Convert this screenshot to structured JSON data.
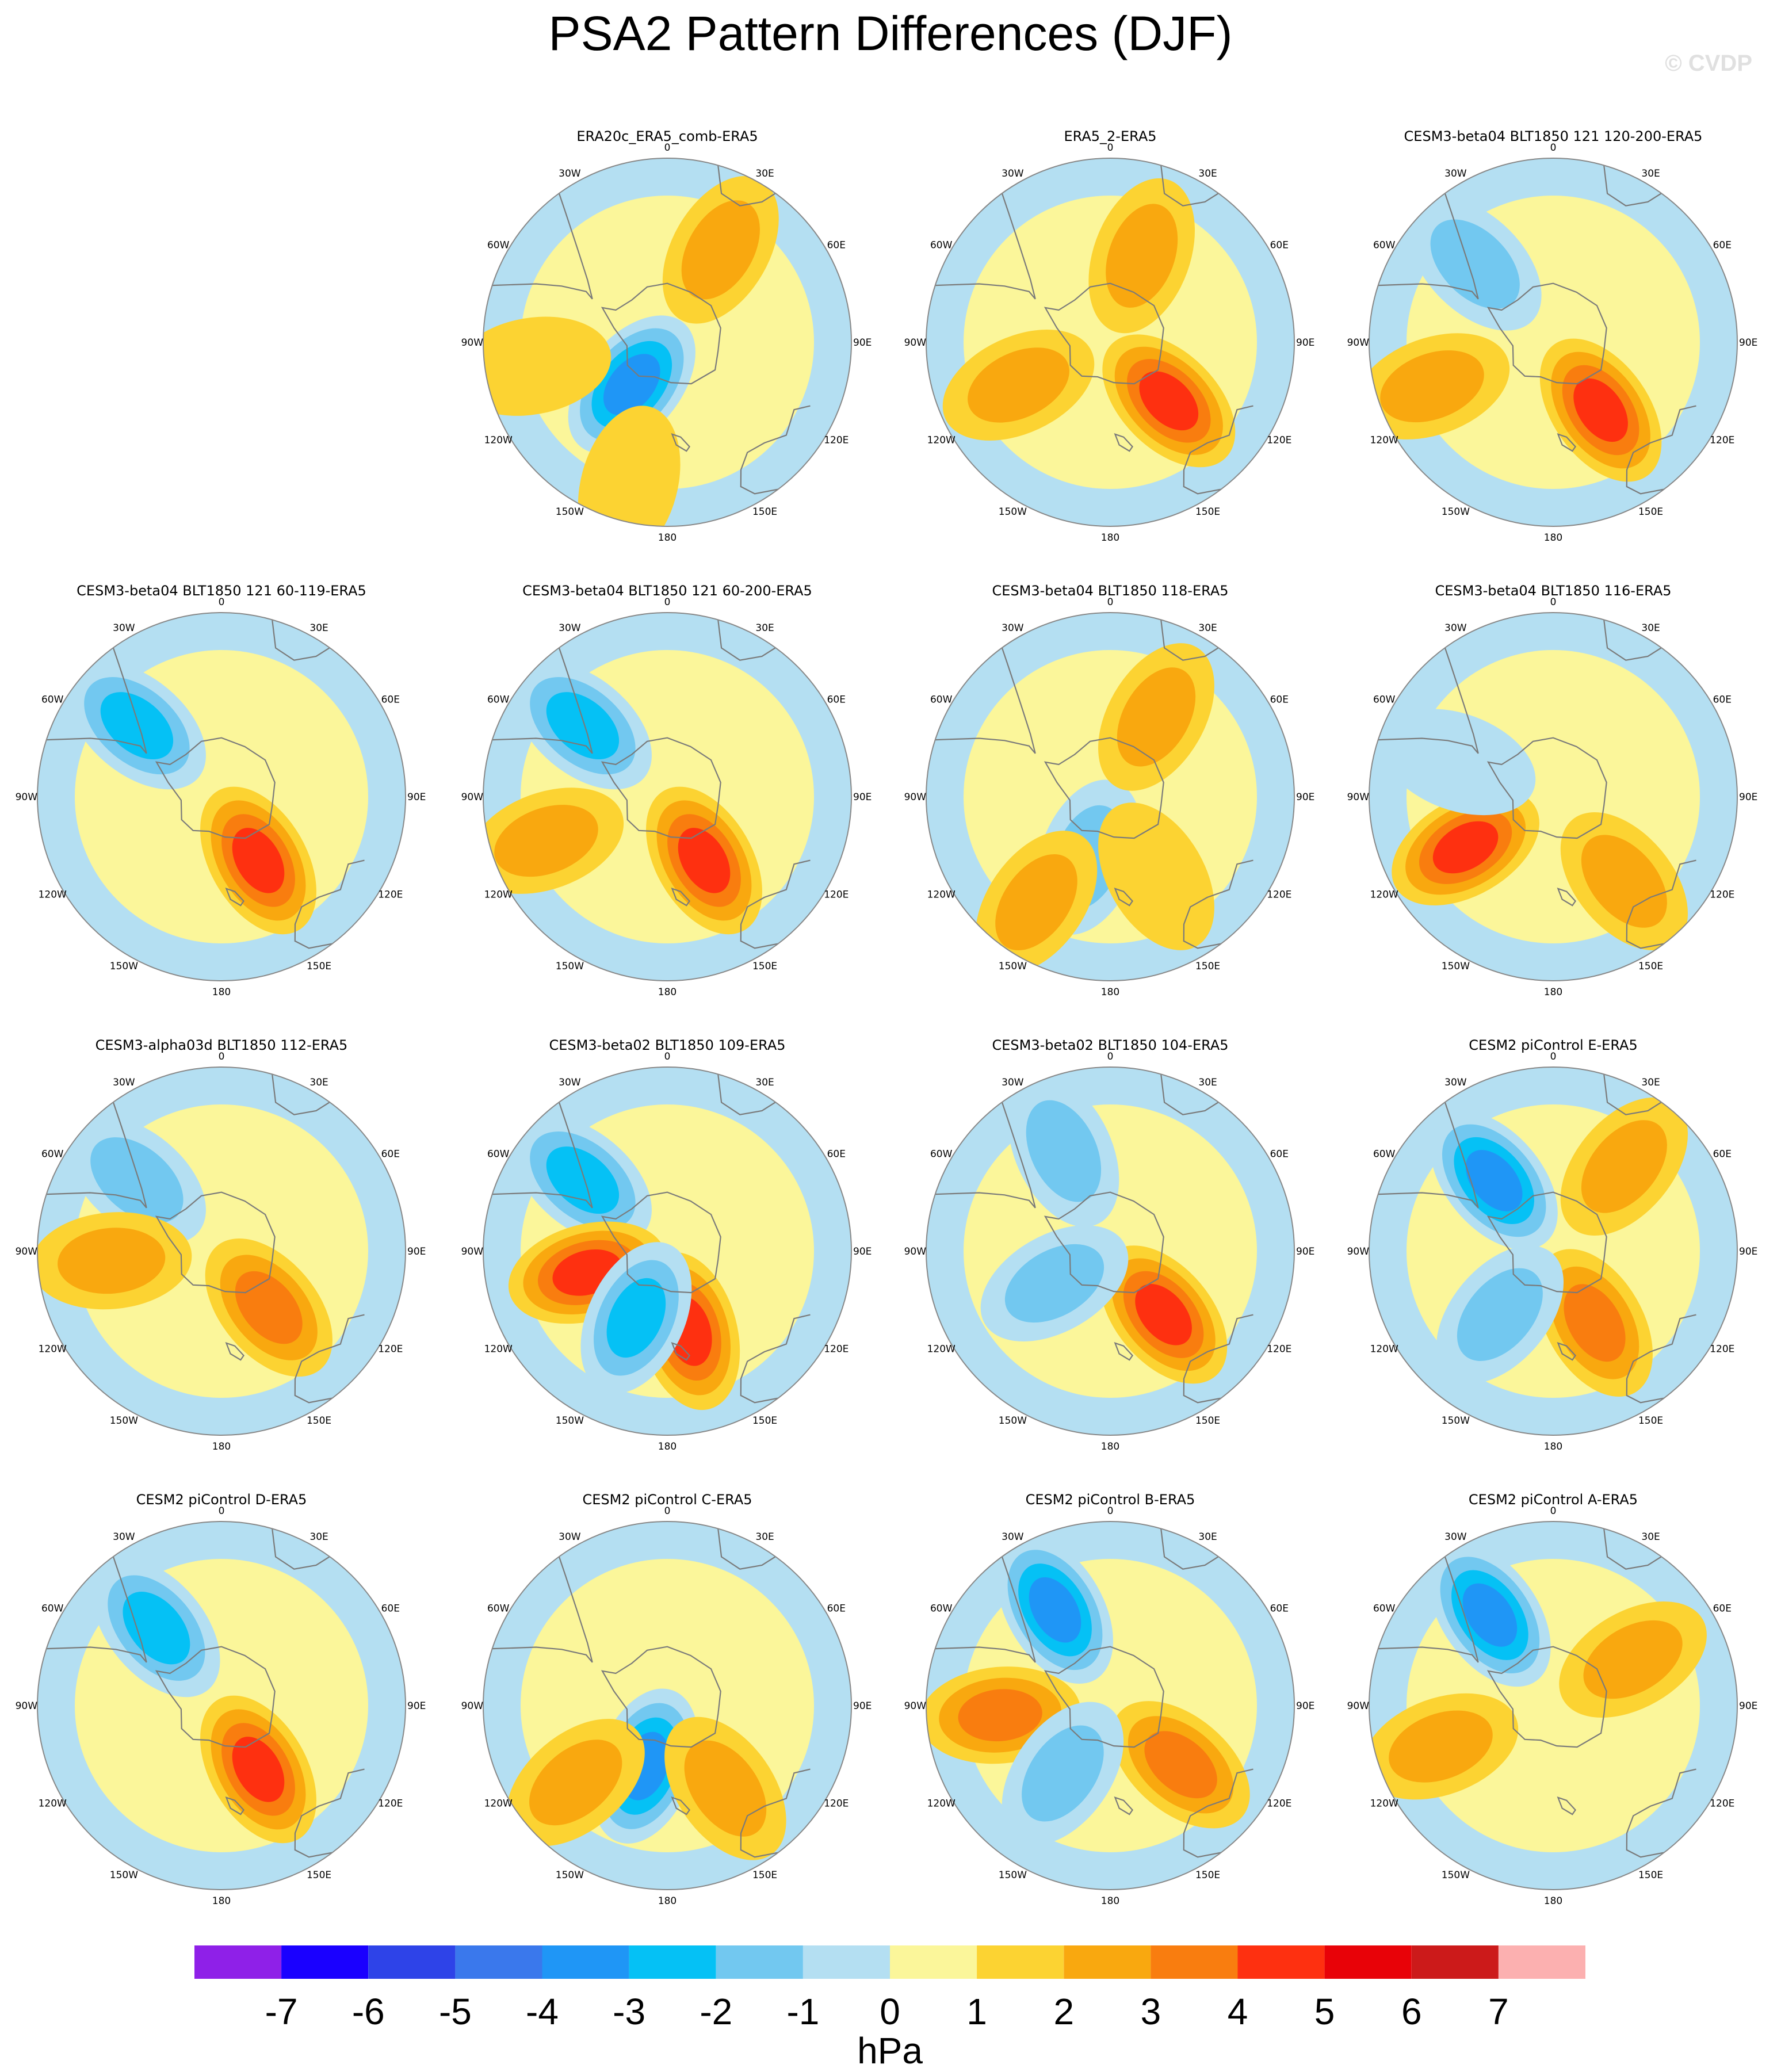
{
  "title": "PSA2 Pattern Differences (DJF)",
  "credit": "© CVDP",
  "colors": {
    "ocean": "#b4dff2",
    "land_outline": "#7a7a7a",
    "frame": "#888888",
    "levels": [
      "#8f20e8",
      "#1a00ff",
      "#2e43e8",
      "#3a78ec",
      "#1f96f6",
      "#05c1f5",
      "#72c8f0",
      "#b4dff2",
      "#fbf69a",
      "#fcd332",
      "#f9a80f",
      "#f97d0f",
      "#fe3010",
      "#e80208",
      "#cc1a1a",
      "#fcb0b0"
    ]
  },
  "longitude_labels": [
    "0",
    "30E",
    "60E",
    "90E",
    "120E",
    "150E",
    "180",
    "150W",
    "120W",
    "90W",
    "60W",
    "30W"
  ],
  "chart_data": {
    "type": "heatmap",
    "projection": "polar-stereographic (south)",
    "season": "DJF",
    "panels": [
      {
        "title": "ERA20c_ERA5_comb-ERA5",
        "anomalies": [
          {
            "lon": -140,
            "r": 0.3,
            "v": -3.5
          },
          {
            "lon": 30,
            "r": 0.58,
            "v": 1.2
          },
          {
            "lon": -100,
            "r": 0.75,
            "v": 1.0
          },
          {
            "lon": -165,
            "r": 0.8,
            "v": 1.0
          }
        ]
      },
      {
        "title": "ERA5_2-ERA5",
        "anomalies": [
          {
            "lon": 135,
            "r": 0.45,
            "v": 3.2
          },
          {
            "lon": -115,
            "r": 0.55,
            "v": 1.8
          },
          {
            "lon": 20,
            "r": 0.5,
            "v": 1.2
          }
        ]
      },
      {
        "title": "CESM3-beta04 BLT1850 121 120-200-ERA5",
        "anomalies": [
          {
            "lon": 145,
            "r": 0.45,
            "v": 3.5
          },
          {
            "lon": -45,
            "r": 0.6,
            "v": -1.5
          },
          {
            "lon": -110,
            "r": 0.7,
            "v": 1.3
          }
        ]
      },
      {
        "title": "CESM3-beta04 BLT1850 121 60-119-ERA5",
        "anomalies": [
          {
            "lon": 150,
            "r": 0.4,
            "v": 3.6
          },
          {
            "lon": -50,
            "r": 0.6,
            "v": -2.2
          }
        ]
      },
      {
        "title": "CESM3-beta04 BLT1850 121 60-200-ERA5",
        "anomalies": [
          {
            "lon": 150,
            "r": 0.4,
            "v": 3.6
          },
          {
            "lon": -50,
            "r": 0.6,
            "v": -2.2
          },
          {
            "lon": -110,
            "r": 0.7,
            "v": 1.2
          }
        ]
      },
      {
        "title": "CESM3-beta04 BLT1850 118-ERA5",
        "anomalies": [
          {
            "lon": -160,
            "r": 0.35,
            "v": -1.6
          },
          {
            "lon": 30,
            "r": 0.5,
            "v": 1.2
          },
          {
            "lon": -145,
            "r": 0.7,
            "v": 1.4
          },
          {
            "lon": 150,
            "r": 0.5,
            "v": 1.0
          }
        ]
      },
      {
        "title": "CESM3-beta04 BLT1850 116-ERA5",
        "anomalies": [
          {
            "lon": -120,
            "r": 0.55,
            "v": 3.4
          },
          {
            "lon": 140,
            "r": 0.6,
            "v": 1.4
          },
          {
            "lon": -70,
            "r": 0.55,
            "v": -1.0
          }
        ]
      },
      {
        "title": "CESM3-alpha03d BLT1850 112-ERA5",
        "anomalies": [
          {
            "lon": 140,
            "r": 0.4,
            "v": 2.6
          },
          {
            "lon": -50,
            "r": 0.6,
            "v": -2.0
          },
          {
            "lon": -95,
            "r": 0.6,
            "v": 1.2
          }
        ]
      },
      {
        "title": "CESM3-beta02 BLT1850 109-ERA5",
        "anomalies": [
          {
            "lon": 165,
            "r": 0.45,
            "v": 3.3
          },
          {
            "lon": -50,
            "r": 0.6,
            "v": -2.8
          },
          {
            "lon": -105,
            "r": 0.45,
            "v": 3.3
          },
          {
            "lon": -155,
            "r": 0.4,
            "v": -2.4
          }
        ]
      },
      {
        "title": "CESM3-beta02 BLT1850 104-ERA5",
        "anomalies": [
          {
            "lon": 140,
            "r": 0.45,
            "v": 3.2
          },
          {
            "lon": -25,
            "r": 0.6,
            "v": -1.8
          },
          {
            "lon": -120,
            "r": 0.35,
            "v": -1.3
          }
        ]
      },
      {
        "title": "CESM2 piControl E-ERA5",
        "anomalies": [
          {
            "lon": -40,
            "r": 0.5,
            "v": -3.6
          },
          {
            "lon": 150,
            "r": 0.45,
            "v": 2.8
          },
          {
            "lon": 40,
            "r": 0.6,
            "v": 1.8
          },
          {
            "lon": -140,
            "r": 0.45,
            "v": -1.2
          }
        ]
      },
      {
        "title": "CESM2 piControl D-ERA5",
        "anomalies": [
          {
            "lon": 150,
            "r": 0.4,
            "v": 3.2
          },
          {
            "lon": -40,
            "r": 0.55,
            "v": -2.3
          }
        ]
      },
      {
        "title": "CESM2 piControl C-ERA5",
        "anomalies": [
          {
            "lon": -160,
            "r": 0.35,
            "v": -3.5
          },
          {
            "lon": -130,
            "r": 0.65,
            "v": 2.0
          },
          {
            "lon": 145,
            "r": 0.55,
            "v": 1.6
          }
        ]
      },
      {
        "title": "CESM2 piControl B-ERA5",
        "anomalies": [
          {
            "lon": -30,
            "r": 0.6,
            "v": -3.2
          },
          {
            "lon": -95,
            "r": 0.6,
            "v": 2.4
          },
          {
            "lon": 130,
            "r": 0.5,
            "v": 2.3
          },
          {
            "lon": -145,
            "r": 0.45,
            "v": -1.5
          }
        ]
      },
      {
        "title": "CESM2 piControl A-ERA5",
        "anomalies": [
          {
            "lon": -35,
            "r": 0.6,
            "v": -3.2
          },
          {
            "lon": 60,
            "r": 0.5,
            "v": 2.0
          },
          {
            "lon": -110,
            "r": 0.65,
            "v": 1.4
          }
        ]
      }
    ],
    "colorbar": {
      "tick_labels": [
        "-7",
        "-6",
        "-5",
        "-4",
        "-3",
        "-2",
        "-1",
        "0",
        "1",
        "2",
        "3",
        "4",
        "5",
        "6",
        "7"
      ],
      "units": "hPa"
    }
  }
}
